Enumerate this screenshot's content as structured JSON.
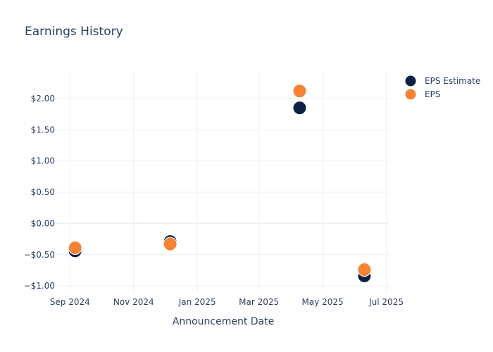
{
  "chart_data": {
    "type": "scatter",
    "title": "Earnings History",
    "xlabel": "Announcement Date",
    "ylabel": "",
    "x_ticks": [
      {
        "date": "2024-09-01",
        "label": "Sep 2024"
      },
      {
        "date": "2024-11-01",
        "label": "Nov 2024"
      },
      {
        "date": "2025-01-01",
        "label": "Jan 2025"
      },
      {
        "date": "2025-03-01",
        "label": "Mar 2025"
      },
      {
        "date": "2025-05-01",
        "label": "May 2025"
      },
      {
        "date": "2025-07-01",
        "label": "Jul 2025"
      }
    ],
    "xlim": [
      "2024-08-19",
      "2025-07-04"
    ],
    "y_ticks": [
      {
        "value": -1.0,
        "label": "−$1.00"
      },
      {
        "value": -0.5,
        "label": "−$0.50"
      },
      {
        "value": 0.0,
        "label": "$0.00"
      },
      {
        "value": 0.5,
        "label": "$0.50"
      },
      {
        "value": 1.0,
        "label": "$1.00"
      },
      {
        "value": 1.5,
        "label": "$1.50"
      },
      {
        "value": 2.0,
        "label": "$2.00"
      }
    ],
    "ylim": [
      -1.1,
      2.45
    ],
    "grid": true,
    "legend_position": "top-right",
    "series": [
      {
        "name": "EPS Estimate",
        "color": "#0d2145",
        "points": [
          {
            "x": "2024-09-06",
            "y": -0.44
          },
          {
            "x": "2024-12-06",
            "y": -0.29
          },
          {
            "x": "2025-04-09",
            "y": 1.85
          },
          {
            "x": "2025-06-10",
            "y": -0.84
          }
        ]
      },
      {
        "name": "EPS",
        "color": "#f58235",
        "points": [
          {
            "x": "2024-09-06",
            "y": -0.39
          },
          {
            "x": "2024-12-06",
            "y": -0.33
          },
          {
            "x": "2025-04-09",
            "y": 2.12
          },
          {
            "x": "2025-06-10",
            "y": -0.74
          }
        ]
      }
    ]
  }
}
